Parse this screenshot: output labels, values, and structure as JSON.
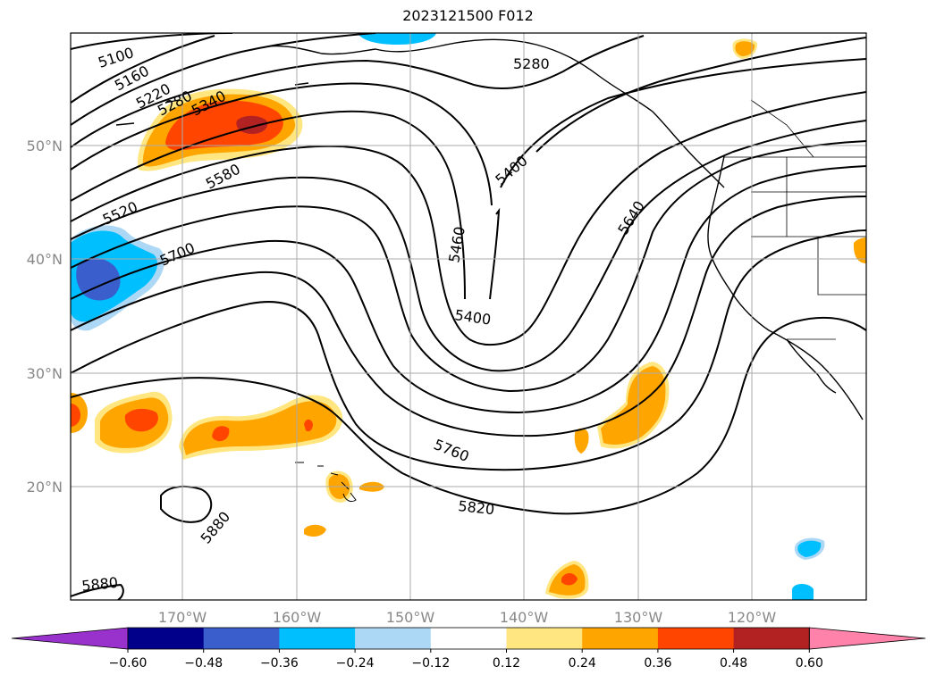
{
  "title": "2023121500 F012",
  "map": {
    "lon_labels": [
      "170°W",
      "160°W",
      "150°W",
      "140°W",
      "130°W",
      "120°W"
    ],
    "lat_labels": [
      "50°N",
      "40°N",
      "30°N",
      "20°N"
    ],
    "contour_labels": [
      {
        "name": "contour-5100",
        "text": "5100"
      },
      {
        "name": "contour-5160",
        "text": "5160"
      },
      {
        "name": "contour-5220",
        "text": "5220"
      },
      {
        "name": "contour-5280-west",
        "text": "5280"
      },
      {
        "name": "contour-5340",
        "text": "5340"
      },
      {
        "name": "contour-5280-east",
        "text": "5280"
      },
      {
        "name": "contour-5400-north",
        "text": "5400"
      },
      {
        "name": "contour-5460",
        "text": "5460"
      },
      {
        "name": "contour-5400-south",
        "text": "5400"
      },
      {
        "name": "contour-5580",
        "text": "5580"
      },
      {
        "name": "contour-5520",
        "text": "5520"
      },
      {
        "name": "contour-5700",
        "text": "5700"
      },
      {
        "name": "contour-5640",
        "text": "5640"
      },
      {
        "name": "contour-5760",
        "text": "5760"
      },
      {
        "name": "contour-5820",
        "text": "5820"
      },
      {
        "name": "contour-5880-mid",
        "text": "5880"
      },
      {
        "name": "contour-5880-sw",
        "text": "5880"
      }
    ],
    "colors": {
      "grid": "#aaaaaa",
      "contour": "#000000",
      "pos1": "#ffe680",
      "pos2": "#ffa500",
      "pos3": "#ff4500",
      "pos4": "#b22222",
      "neg1": "#add8f5",
      "neg2": "#00bfff",
      "neg3": "#3a5fcd"
    }
  },
  "colorbar": {
    "ticks": [
      "−0.60",
      "−0.48",
      "−0.36",
      "−0.24",
      "−0.12",
      "0.12",
      "0.24",
      "0.36",
      "0.48",
      "0.60"
    ],
    "colors": [
      "#9932cc",
      "#00008b",
      "#3a5fcd",
      "#00bfff",
      "#add8f5",
      "#ffffff",
      "#ffe680",
      "#ffa500",
      "#ff4500",
      "#b22222",
      "#ff82ab"
    ]
  }
}
